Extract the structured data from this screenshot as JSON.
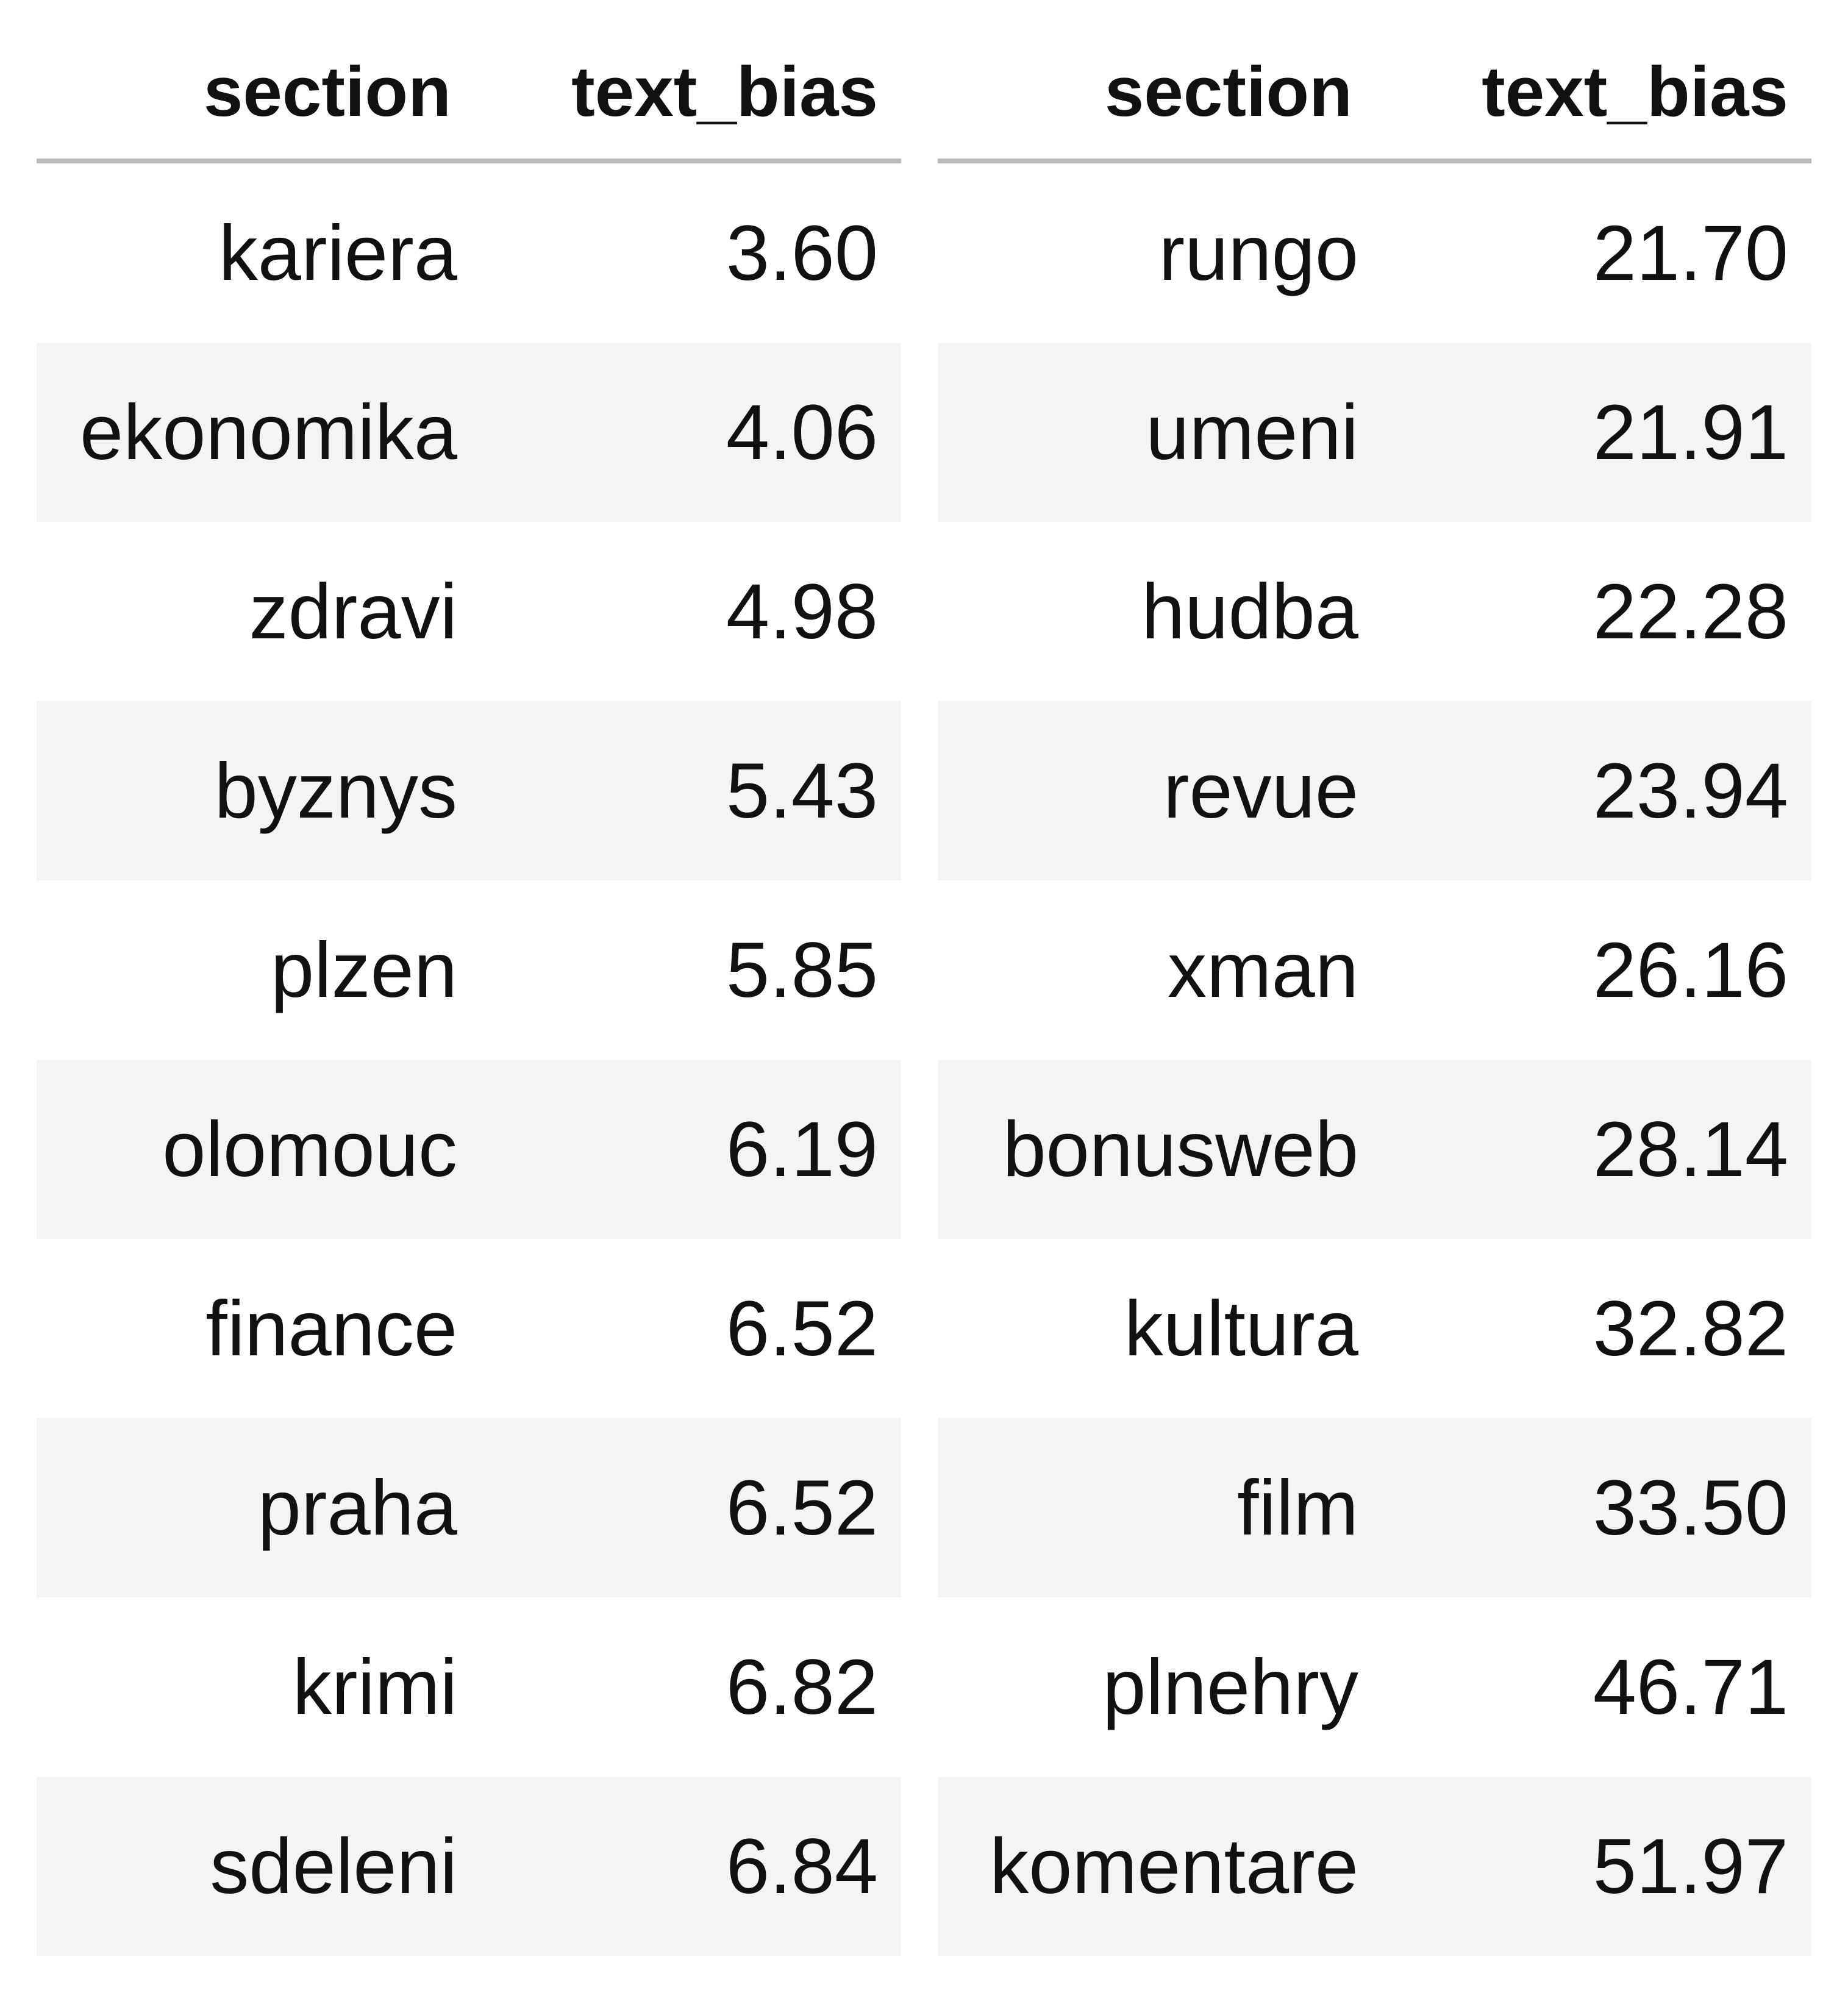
{
  "chart_data": {
    "type": "table",
    "tables": [
      {
        "columns": [
          "section",
          "text_bias"
        ],
        "rows": [
          {
            "section": "kariera",
            "text_bias": "3.60"
          },
          {
            "section": "ekonomika",
            "text_bias": "4.06"
          },
          {
            "section": "zdravi",
            "text_bias": "4.98"
          },
          {
            "section": "byznys",
            "text_bias": "5.43"
          },
          {
            "section": "plzen",
            "text_bias": "5.85"
          },
          {
            "section": "olomouc",
            "text_bias": "6.19"
          },
          {
            "section": "finance",
            "text_bias": "6.52"
          },
          {
            "section": "praha",
            "text_bias": "6.52"
          },
          {
            "section": "krimi",
            "text_bias": "6.82"
          },
          {
            "section": "sdeleni",
            "text_bias": "6.84"
          }
        ]
      },
      {
        "columns": [
          "section",
          "text_bias"
        ],
        "rows": [
          {
            "section": "rungo",
            "text_bias": "21.70"
          },
          {
            "section": "umeni",
            "text_bias": "21.91"
          },
          {
            "section": "hudba",
            "text_bias": "22.28"
          },
          {
            "section": "revue",
            "text_bias": "23.94"
          },
          {
            "section": "xman",
            "text_bias": "26.16"
          },
          {
            "section": "bonusweb",
            "text_bias": "28.14"
          },
          {
            "section": "kultura",
            "text_bias": "32.82"
          },
          {
            "section": "film",
            "text_bias": "33.50"
          },
          {
            "section": "plnehry",
            "text_bias": "46.71"
          },
          {
            "section": "komentare",
            "text_bias": "51.97"
          }
        ]
      }
    ]
  },
  "colors": {
    "header_rule": "#bdbdbd",
    "row_stripe": "#f4f4f4",
    "row_plain": "#ffffff",
    "text": "#111111"
  }
}
